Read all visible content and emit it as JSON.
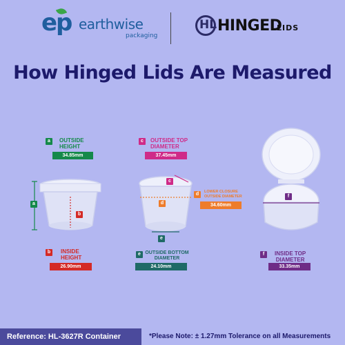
{
  "header": {
    "earthwise_mark": "ep",
    "earthwise_name": "earthwise",
    "earthwise_sub": "packaging",
    "hinged_glyph": "HL",
    "hinged_name": "HINGED",
    "hinged_lids": "LIDS"
  },
  "title": "How Hinged Lids Are Measured",
  "measurements": [
    {
      "tag": "a",
      "label_line1": "OUTSIDE",
      "label_line2": "HEIGHT",
      "value": "34.85mm",
      "color": "#15894a"
    },
    {
      "tag": "b",
      "label_line1": "INSIDE",
      "label_line2": "HEIGHT",
      "value": "26.90mm",
      "color": "#d42a26"
    },
    {
      "tag": "c",
      "label_line1": "OUTSIDE TOP",
      "label_line2": "DIAMETER",
      "value": "37.45mm",
      "color": "#cf2b88"
    },
    {
      "tag": "d",
      "label_line1": "LOWER CLOSURE",
      "label_line2": "OUTSIDE DIAMETER",
      "value": "34.60mm",
      "color": "#ee7c2b"
    },
    {
      "tag": "e",
      "label_line1": "OUTSIDE BOTTOM",
      "label_line2": "DIAMETER",
      "value": "24.10mm",
      "color": "#1f6a66"
    },
    {
      "tag": "f",
      "label_line1": "INSIDE TOP",
      "label_line2": "DIAMETER",
      "value": "33.35mm",
      "color": "#6f2c87"
    }
  ],
  "diagram_markers": {
    "a": "a",
    "b": "b",
    "c": "c",
    "d": "d",
    "e": "e",
    "f": "f"
  },
  "footer": {
    "reference": "Reference: HL-3627R Container",
    "note": "*Please Note: ± 1.27mm Tolerance on all Measurements"
  }
}
